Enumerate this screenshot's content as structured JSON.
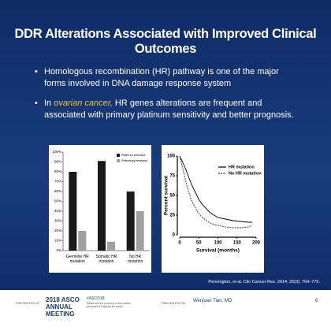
{
  "title": "DDR Alterations Associated with Improved Clinical Outcomes",
  "bullets": [
    "Homologous recombination (HR) pathway is one of the major forms involved in DNA damage response system",
    {
      "prefix": "In",
      "highlight": "ovarian cancer,",
      "rest": "HR genes alterations are frequent and associated with primary platinum sensitivity and better prognosis."
    }
  ],
  "citation": "Pennington, et al. Clin Cancer Res. 2014; 20(3): 764–775.",
  "footer": {
    "presented_at": "PRESENTED AT:",
    "meeting": "2018 ASCO ANNUAL MEETING",
    "hashtag": "#ASCO18",
    "note": "Slides are the property of the author, permission required for reuse.",
    "presented_by": "PRESENTED BY:",
    "presenter": "Wenjuan Tian, MD",
    "page": "6"
  },
  "chart_data": [
    {
      "type": "bar",
      "categories": [
        "Germline HR mutation",
        "Somatic HR mutation",
        "No HR mutation"
      ],
      "series": [
        {
          "name": "Platinum sensitive",
          "color": "#1a1a1a",
          "values": [
            80,
            91,
            60
          ]
        },
        {
          "name": "Refractory/resistant",
          "color": "#a0a0a0",
          "values": [
            20,
            9,
            40
          ]
        }
      ],
      "ylim": [
        0,
        100
      ],
      "yticks": [
        {
          "value": 0,
          "label": "0%"
        },
        {
          "value": 10,
          "label": "10%"
        },
        {
          "value": 20,
          "label": "20%"
        },
        {
          "value": 30,
          "label": "30%"
        },
        {
          "value": 40,
          "label": "40%"
        },
        {
          "value": 50,
          "label": "50%"
        },
        {
          "value": 60,
          "label": "60%"
        },
        {
          "value": 70,
          "label": "70%"
        },
        {
          "value": 80,
          "label": "80%"
        },
        {
          "value": 90,
          "label": "90%"
        },
        {
          "value": 100,
          "label": "100%"
        }
      ],
      "legend": "upper right"
    },
    {
      "type": "line",
      "xlabel": "Survival (months)",
      "ylabel": "Percent survival",
      "x": [
        0,
        10,
        20,
        30,
        40,
        50,
        60,
        70,
        80,
        90,
        100,
        120,
        140,
        160,
        180,
        190
      ],
      "series": [
        {
          "name": "HR mutation",
          "color": "#000000",
          "dash": false,
          "values": [
            100,
            90,
            78,
            65,
            55,
            45,
            38,
            33,
            28,
            25,
            22,
            20,
            18,
            17,
            16,
            16
          ]
        },
        {
          "name": "No HR mutation",
          "color": "#333333",
          "dash": true,
          "values": [
            100,
            80,
            60,
            45,
            35,
            27,
            22,
            18,
            15,
            13,
            12,
            10,
            9,
            9,
            10,
            12
          ]
        }
      ],
      "xlim": [
        0,
        200
      ],
      "xticks": [
        0,
        50,
        100,
        150,
        200
      ],
      "ylim": [
        0,
        100
      ],
      "yticks": [
        0,
        25,
        50,
        75,
        100
      ],
      "legend": "upper right"
    }
  ]
}
